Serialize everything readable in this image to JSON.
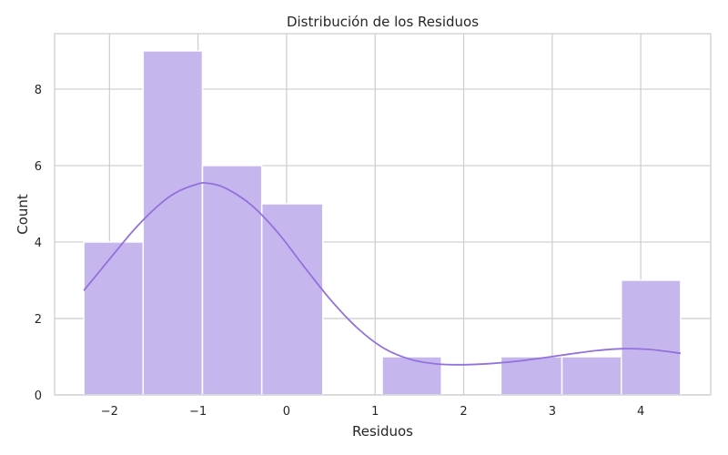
{
  "chart_data": {
    "type": "bar",
    "title": "Distribución de los Residuos",
    "xlabel": "Residuos",
    "ylabel": "Count",
    "xlim": [
      -2.62,
      4.79
    ],
    "ylim": [
      0,
      9.45
    ],
    "x_ticks": [
      {
        "value": -2,
        "label": "−2"
      },
      {
        "value": -1,
        "label": "−1"
      },
      {
        "value": 0,
        "label": "0"
      },
      {
        "value": 1,
        "label": "1"
      },
      {
        "value": 2,
        "label": "2"
      },
      {
        "value": 3,
        "label": "3"
      },
      {
        "value": 4,
        "label": "4"
      }
    ],
    "y_ticks": [
      {
        "value": 0,
        "label": "0"
      },
      {
        "value": 2,
        "label": "2"
      },
      {
        "value": 4,
        "label": "4"
      },
      {
        "value": 6,
        "label": "6"
      },
      {
        "value": 8,
        "label": "8"
      }
    ],
    "bins": [
      {
        "x0": -2.29,
        "x1": -1.62,
        "count": 4
      },
      {
        "x0": -1.62,
        "x1": -0.95,
        "count": 9
      },
      {
        "x0": -0.95,
        "x1": -0.28,
        "count": 6
      },
      {
        "x0": -0.28,
        "x1": 0.41,
        "count": 5
      },
      {
        "x0": 0.41,
        "x1": 1.08,
        "count": 0
      },
      {
        "x0": 1.08,
        "x1": 1.75,
        "count": 1
      },
      {
        "x0": 1.75,
        "x1": 2.42,
        "count": 0
      },
      {
        "x0": 2.42,
        "x1": 3.11,
        "count": 1
      },
      {
        "x0": 3.11,
        "x1": 3.78,
        "count": 1
      },
      {
        "x0": 3.78,
        "x1": 4.45,
        "count": 3
      }
    ],
    "kde": {
      "x": [
        -2.29,
        -2.0,
        -1.7,
        -1.4,
        -1.2,
        -1.0,
        -0.9,
        -0.7,
        -0.4,
        -0.1,
        0.2,
        0.5,
        0.8,
        1.1,
        1.4,
        1.7,
        2.0,
        2.3,
        2.6,
        2.9,
        3.2,
        3.5,
        3.8,
        4.1,
        4.45
      ],
      "y": [
        2.73,
        3.55,
        4.38,
        5.05,
        5.35,
        5.52,
        5.54,
        5.42,
        4.97,
        4.25,
        3.35,
        2.48,
        1.75,
        1.22,
        0.93,
        0.81,
        0.79,
        0.82,
        0.88,
        0.97,
        1.07,
        1.16,
        1.21,
        1.19,
        1.09
      ]
    },
    "grid": true,
    "colors": {
      "bar_fill": "#c5b7ee",
      "bar_edge": "#ffffff",
      "kde_line": "#9370db",
      "grid": "#cccccc",
      "axes_edge": "#cccccc",
      "text": "#262626"
    }
  }
}
